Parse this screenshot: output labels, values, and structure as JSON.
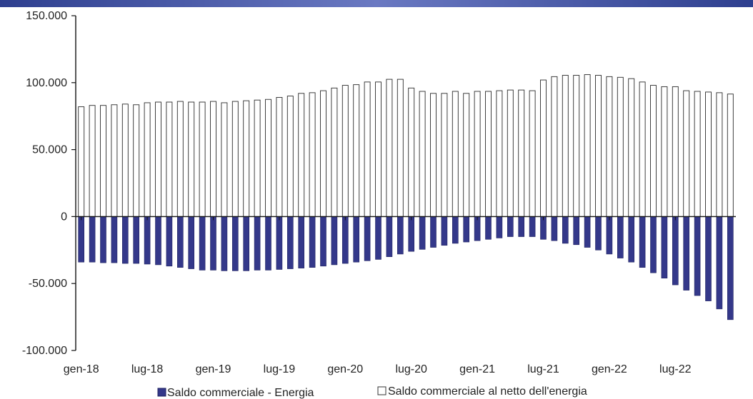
{
  "chart_data": {
    "type": "bar",
    "title": "",
    "xlabel": "",
    "ylabel": "",
    "ylim": [
      -100000,
      150000
    ],
    "yticks": [
      {
        "value": 150000,
        "label": "150.000"
      },
      {
        "value": 100000,
        "label": "100.000"
      },
      {
        "value": 50000,
        "label": "50.000"
      },
      {
        "value": 0,
        "label": "0"
      },
      {
        "value": -50000,
        "label": "-50.000"
      },
      {
        "value": -100000,
        "label": "-100.000"
      }
    ],
    "xtick_labels": [
      {
        "index": 0,
        "label": "gen-18"
      },
      {
        "index": 6,
        "label": "lug-18"
      },
      {
        "index": 12,
        "label": "gen-19"
      },
      {
        "index": 18,
        "label": "lug-19"
      },
      {
        "index": 24,
        "label": "gen-20"
      },
      {
        "index": 30,
        "label": "lug-20"
      },
      {
        "index": 36,
        "label": "gen-21"
      },
      {
        "index": 42,
        "label": "lug-21"
      },
      {
        "index": 48,
        "label": "gen-22"
      },
      {
        "index": 54,
        "label": "lug-22"
      }
    ],
    "grid": false,
    "legend_position": "bottom",
    "series": [
      {
        "name": "Saldo commerciale - Energia",
        "color": "#34388a",
        "values": [
          -34000,
          -34000,
          -34500,
          -34500,
          -35000,
          -35000,
          -35500,
          -36000,
          -37000,
          -38000,
          -39000,
          -40000,
          -40000,
          -40500,
          -40500,
          -40500,
          -40000,
          -40000,
          -39500,
          -39000,
          -38500,
          -38000,
          -37000,
          -36000,
          -35000,
          -34000,
          -33000,
          -32000,
          -30000,
          -28000,
          -26000,
          -24500,
          -23000,
          -21500,
          -20000,
          -19000,
          -18000,
          -17000,
          -16000,
          -15000,
          -15000,
          -15000,
          -17000,
          -18000,
          -20000,
          -21000,
          -23000,
          -25000,
          -28000,
          -31000,
          -34000,
          -38000,
          -42000,
          -46000,
          -51000,
          -55000,
          -59000,
          -63000,
          -69000,
          -77000
        ]
      },
      {
        "name": "Saldo commerciale al netto dell'energia",
        "color": "#ffffff",
        "values": [
          82000,
          83000,
          83000,
          83500,
          84000,
          83500,
          85000,
          85500,
          85500,
          86000,
          85500,
          85500,
          86000,
          85000,
          86000,
          86500,
          87000,
          87500,
          89000,
          90000,
          92000,
          92500,
          94000,
          96000,
          98000,
          98500,
          100500,
          100500,
          102500,
          102500,
          96000,
          93500,
          92000,
          92000,
          93500,
          92000,
          93500,
          93500,
          94000,
          94500,
          94500,
          94000,
          102000,
          104500,
          105500,
          105500,
          106000,
          105500,
          104500,
          104000,
          103000,
          100500,
          98000,
          97000,
          97000,
          94000,
          93500,
          93000,
          92500,
          91500
        ]
      }
    ]
  },
  "legend": {
    "items": [
      {
        "label": "Saldo commerciale - Energia"
      },
      {
        "label": "Saldo commerciale al netto dell'energia"
      }
    ]
  }
}
